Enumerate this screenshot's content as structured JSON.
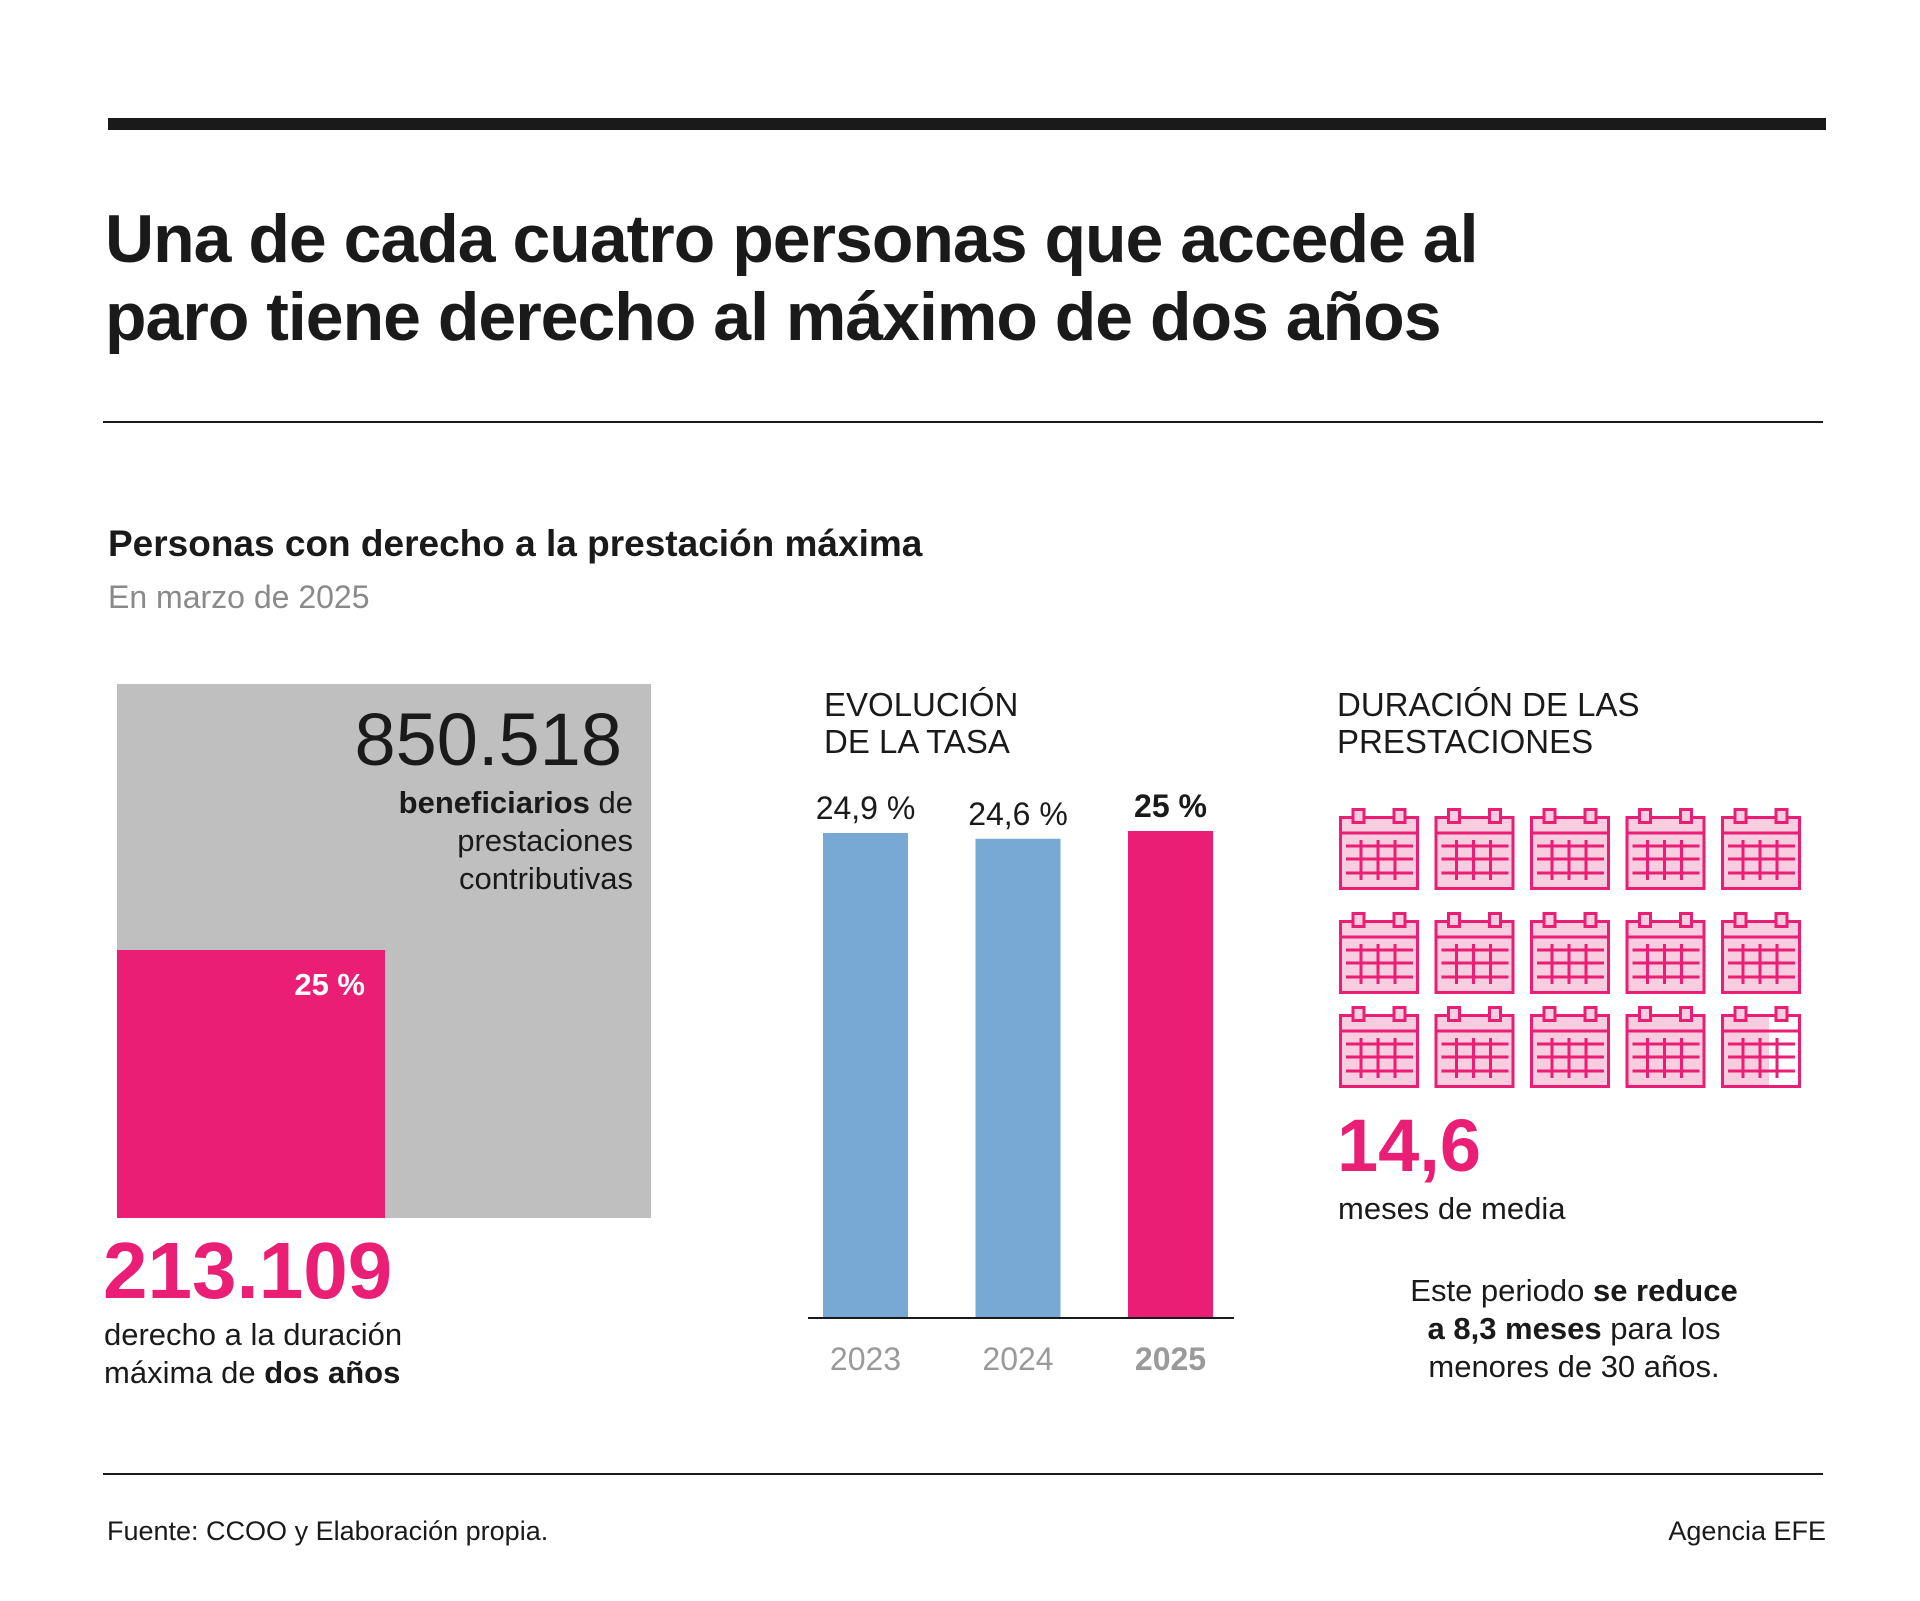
{
  "title_lines": [
    "Una de cada cuatro personas que accede al",
    "paro tiene derecho al máximo de dos años"
  ],
  "subtitle": "Personas con derecho a la prestación máxima",
  "subtitle_date": "En marzo de 2025",
  "colors": {
    "accent": "#e91e74",
    "gray": "#bfbfbf",
    "blue": "#78a9d4",
    "text": "#1a1a1a"
  },
  "total": {
    "value": "850.518",
    "label_bold": "beneficiarios",
    "label_rest1": " de",
    "label_line2": "prestaciones",
    "label_line3": "contributivas"
  },
  "share": {
    "percent_label": "25 %",
    "percent": 25
  },
  "maximum": {
    "value": "213.109",
    "label_line1": "derecho a la duración",
    "label_line2_pre": "máxima de ",
    "label_line2_bold": "dos años"
  },
  "chart_data": [
    {
      "type": "bar",
      "title_lines": [
        "EVOLUCIÓN",
        "DE LA TASA"
      ],
      "categories": [
        "2023",
        "2024",
        "2025"
      ],
      "values": [
        24.9,
        24.6,
        25
      ],
      "value_labels": [
        "24,9 %",
        "24,6 %",
        "25 %"
      ],
      "highlight": "2025",
      "ylim": [
        0,
        25
      ],
      "grid": false,
      "xlabel": "",
      "ylabel": ""
    }
  ],
  "duration": {
    "title_lines": [
      "DURACIÓN DE LAS",
      "PRESTACIONES"
    ],
    "months_value": 14.6,
    "months_total_icons": 15,
    "value_label": "14,6",
    "value_caption": "meses de media",
    "icon": "calendar-icon",
    "note": {
      "l1_pre": "Este periodo ",
      "l1_bold": "se reduce",
      "l2_bold": "a 8,3 meses",
      "l2_rest": " para los",
      "l3": "menores de 30 años."
    }
  },
  "footer": {
    "source": "Fuente: CCOO y Elaboración propia.",
    "credit": "Agencia EFE"
  }
}
